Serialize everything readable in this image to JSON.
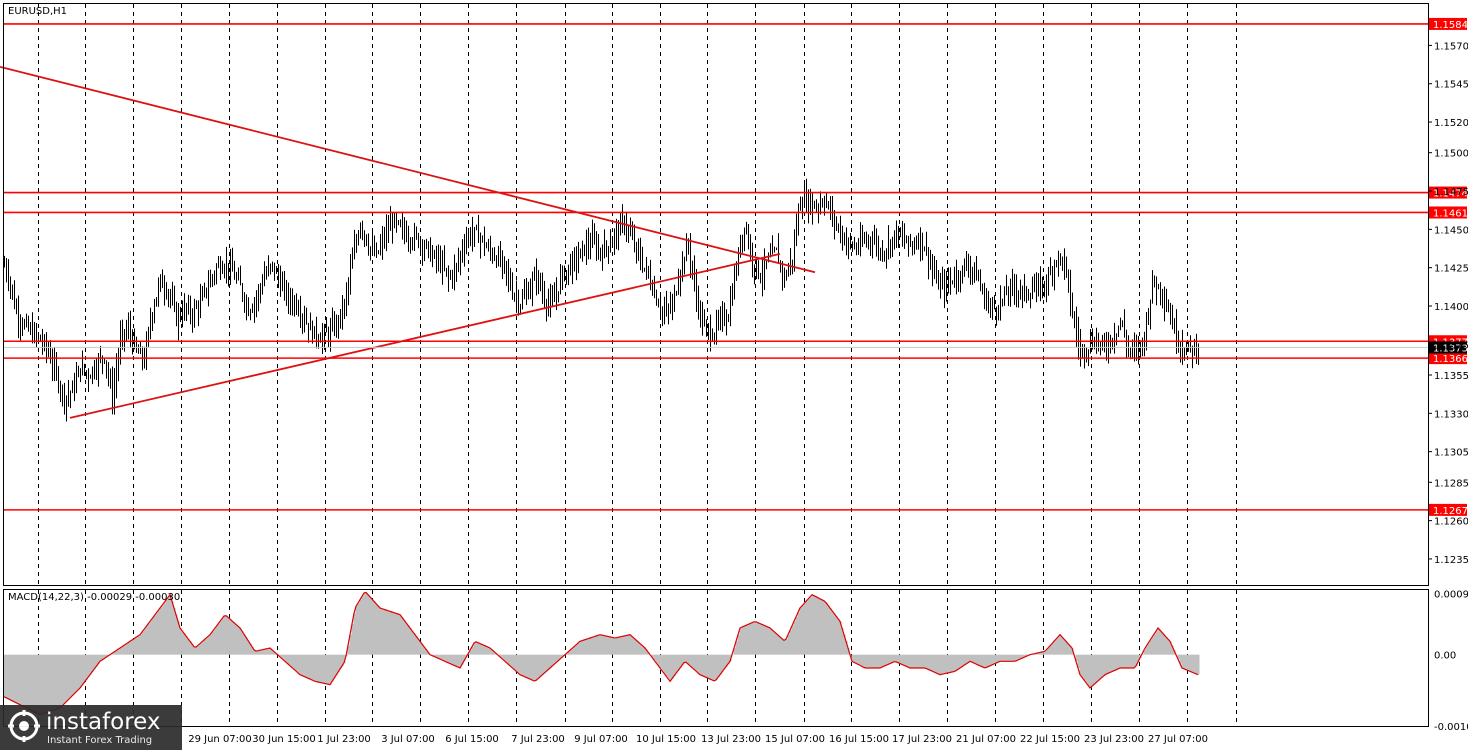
{
  "chart_data": [
    {
      "type": "candlestick",
      "title": "EURUSD,H1",
      "ylim": [
        1.1218,
        1.1597
      ],
      "y_ticks": [
        "1.1570",
        "1.1545",
        "1.1520",
        "1.1500",
        "1.1475",
        "1.1450",
        "1.1425",
        "1.1400",
        "1.1375",
        "1.1355",
        "1.1330",
        "1.1305",
        "1.1285",
        "1.1260",
        "1.1235"
      ],
      "x_ticks": [
        "29 Jun 07:00",
        "30 Jun 15:00",
        "1 Jul 23:00",
        "3 Jul 07:00",
        "6 Jul 15:00",
        "7 Jul 23:00",
        "9 Jul 07:00",
        "10 Jul 15:00",
        "13 Jul 23:00",
        "15 Jul 07:00",
        "16 Jul 15:00",
        "17 Jul 23:00",
        "21 Jul 07:00",
        "22 Jul 15:00",
        "23 Jul 23:00",
        "27 Jul 07:00"
      ],
      "levels": [
        {
          "label": "1.1584",
          "value": 1.1584
        },
        {
          "label": "1.1474",
          "value": 1.1474
        },
        {
          "label": "1.1461",
          "value": 1.1461
        },
        {
          "label": "1.1377",
          "value": 1.1377
        },
        {
          "label": "1.1366",
          "value": 1.1366
        },
        {
          "label": "1.1267",
          "value": 1.1267
        }
      ],
      "current_price": {
        "label": "1.1373",
        "value": 1.1373
      },
      "trendlines": [
        {
          "from": [
            0,
            1.1556
          ],
          "to": [
            815,
            1.1422
          ]
        },
        {
          "from": [
            70,
            1.1327
          ],
          "to": [
            780,
            1.1434
          ]
        }
      ],
      "close_path": [
        [
          0,
          1.1433
        ],
        [
          8,
          1.142
        ],
        [
          16,
          1.1396
        ],
        [
          24,
          1.1387
        ],
        [
          32,
          1.1382
        ],
        [
          40,
          1.1378
        ],
        [
          48,
          1.137
        ],
        [
          56,
          1.1355
        ],
        [
          64,
          1.134
        ],
        [
          72,
          1.1345
        ],
        [
          80,
          1.136
        ],
        [
          88,
          1.1355
        ],
        [
          96,
          1.1362
        ],
        [
          104,
          1.1368
        ],
        [
          112,
          1.134
        ],
        [
          120,
          1.1378
        ],
        [
          128,
          1.1385
        ],
        [
          136,
          1.137
        ],
        [
          144,
          1.1365
        ],
        [
          152,
          1.1398
        ],
        [
          160,
          1.1416
        ],
        [
          168,
          1.141
        ],
        [
          176,
          1.1392
        ],
        [
          184,
          1.1398
        ],
        [
          192,
          1.1395
        ],
        [
          200,
          1.1402
        ],
        [
          208,
          1.1414
        ],
        [
          216,
          1.1425
        ],
        [
          224,
          1.1428
        ],
        [
          232,
          1.1422
        ],
        [
          240,
          1.1412
        ],
        [
          248,
          1.1398
        ],
        [
          256,
          1.1405
        ],
        [
          264,
          1.142
        ],
        [
          272,
          1.1426
        ],
        [
          280,
          1.1415
        ],
        [
          288,
          1.1404
        ],
        [
          296,
          1.1402
        ],
        [
          304,
          1.1392
        ],
        [
          312,
          1.1383
        ],
        [
          320,
          1.138
        ],
        [
          328,
          1.1382
        ],
        [
          336,
          1.1388
        ],
        [
          344,
          1.14
        ],
        [
          352,
          1.143
        ],
        [
          360,
          1.1455
        ],
        [
          368,
          1.144
        ],
        [
          376,
          1.1432
        ],
        [
          384,
          1.1445
        ],
        [
          392,
          1.1455
        ],
        [
          400,
          1.145
        ],
        [
          408,
          1.1446
        ],
        [
          416,
          1.1444
        ],
        [
          424,
          1.144
        ],
        [
          432,
          1.1432
        ],
        [
          440,
          1.1428
        ],
        [
          448,
          1.1418
        ],
        [
          456,
          1.1425
        ],
        [
          464,
          1.1442
        ],
        [
          472,
          1.1448
        ],
        [
          480,
          1.1445
        ],
        [
          488,
          1.1436
        ],
        [
          496,
          1.1432
        ],
        [
          504,
          1.1425
        ],
        [
          512,
          1.141
        ],
        [
          520,
          1.1402
        ],
        [
          528,
          1.141
        ],
        [
          536,
          1.142
        ],
        [
          544,
          1.1405
        ],
        [
          552,
          1.14
        ],
        [
          560,
          1.1418
        ],
        [
          568,
          1.1425
        ],
        [
          576,
          1.143
        ],
        [
          584,
          1.1438
        ],
        [
          592,
          1.1442
        ],
        [
          600,
          1.1435
        ],
        [
          608,
          1.144
        ],
        [
          616,
          1.1448
        ],
        [
          624,
          1.1455
        ],
        [
          632,
          1.1442
        ],
        [
          640,
          1.143
        ],
        [
          648,
          1.142
        ],
        [
          656,
          1.1405
        ],
        [
          664,
          1.1395
        ],
        [
          672,
          1.14
        ],
        [
          680,
          1.1425
        ],
        [
          688,
          1.144
        ],
        [
          696,
          1.1405
        ],
        [
          704,
          1.1385
        ],
        [
          712,
          1.1382
        ],
        [
          720,
          1.139
        ],
        [
          728,
          1.1395
        ],
        [
          736,
          1.1425
        ],
        [
          744,
          1.1455
        ],
        [
          752,
          1.143
        ],
        [
          760,
          1.142
        ],
        [
          768,
          1.143
        ],
        [
          776,
          1.1435
        ],
        [
          784,
          1.1418
        ],
        [
          792,
          1.1432
        ],
        [
          800,
          1.147
        ],
        [
          808,
          1.1468
        ],
        [
          816,
          1.1465
        ],
        [
          824,
          1.147
        ],
        [
          832,
          1.1458
        ],
        [
          840,
          1.1448
        ],
        [
          848,
          1.144
        ],
        [
          856,
          1.1438
        ],
        [
          864,
          1.1442
        ],
        [
          872,
          1.1445
        ],
        [
          880,
          1.1435
        ],
        [
          888,
          1.144
        ],
        [
          896,
          1.1448
        ],
        [
          904,
          1.1442
        ],
        [
          912,
          1.144
        ],
        [
          920,
          1.1445
        ],
        [
          928,
          1.1432
        ],
        [
          936,
          1.1415
        ],
        [
          944,
          1.1412
        ],
        [
          952,
          1.1418
        ],
        [
          960,
          1.1422
        ],
        [
          968,
          1.1428
        ],
        [
          976,
          1.142
        ],
        [
          984,
          1.1405
        ],
        [
          992,
          1.1398
        ],
        [
          1000,
          1.1402
        ],
        [
          1008,
          1.141
        ],
        [
          1016,
          1.1412
        ],
        [
          1024,
          1.1408
        ],
        [
          1032,
          1.141
        ],
        [
          1040,
          1.1412
        ],
        [
          1048,
          1.1418
        ],
        [
          1056,
          1.1432
        ],
        [
          1064,
          1.1428
        ],
        [
          1072,
          1.1395
        ],
        [
          1080,
          1.137
        ],
        [
          1088,
          1.1375
        ],
        [
          1096,
          1.1378
        ],
        [
          1104,
          1.1372
        ],
        [
          1112,
          1.138
        ],
        [
          1120,
          1.139
        ],
        [
          1128,
          1.1372
        ],
        [
          1136,
          1.137
        ],
        [
          1144,
          1.138
        ],
        [
          1152,
          1.1415
        ],
        [
          1160,
          1.1412
        ],
        [
          1168,
          1.1398
        ],
        [
          1176,
          1.138
        ],
        [
          1184,
          1.1372
        ],
        [
          1192,
          1.1372
        ],
        [
          1198,
          1.1374
        ]
      ]
    },
    {
      "type": "area",
      "title": "MACD(14,22,3) -0.00029 -0.00030",
      "ylim": [
        -0.00107,
        0.00097
      ],
      "y_ticks": [
        "0.00092",
        "0.00",
        "-0.00107"
      ],
      "histogram_path": [
        [
          0,
          -0.0006
        ],
        [
          20,
          -0.00075
        ],
        [
          40,
          -0.0009
        ],
        [
          60,
          -0.0008
        ],
        [
          80,
          -0.0005
        ],
        [
          100,
          -0.0001
        ],
        [
          120,
          0.0001
        ],
        [
          140,
          0.0003
        ],
        [
          160,
          0.0007
        ],
        [
          170,
          0.0009
        ],
        [
          180,
          0.0004
        ],
        [
          195,
          0.0001
        ],
        [
          210,
          0.0003
        ],
        [
          225,
          0.0006
        ],
        [
          240,
          0.0004
        ],
        [
          255,
          5e-05
        ],
        [
          270,
          0.0001
        ],
        [
          285,
          -0.0001
        ],
        [
          300,
          -0.0003
        ],
        [
          315,
          -0.0004
        ],
        [
          330,
          -0.00045
        ],
        [
          345,
          -0.0001
        ],
        [
          355,
          0.0007
        ],
        [
          365,
          0.00095
        ],
        [
          380,
          0.0007
        ],
        [
          400,
          0.0006
        ],
        [
          415,
          0.0003
        ],
        [
          430,
          0.0
        ],
        [
          445,
          -0.0001
        ],
        [
          460,
          -0.0002
        ],
        [
          475,
          0.0002
        ],
        [
          490,
          0.0001
        ],
        [
          505,
          -0.0001
        ],
        [
          520,
          -0.0003
        ],
        [
          535,
          -0.0004
        ],
        [
          550,
          -0.0002
        ],
        [
          565,
          0.0
        ],
        [
          580,
          0.0002
        ],
        [
          600,
          0.0003
        ],
        [
          615,
          0.00025
        ],
        [
          630,
          0.0003
        ],
        [
          645,
          0.0001
        ],
        [
          660,
          -0.0002
        ],
        [
          670,
          -0.0004
        ],
        [
          685,
          -0.0001
        ],
        [
          700,
          -0.0003
        ],
        [
          715,
          -0.0004
        ],
        [
          730,
          -0.0001
        ],
        [
          740,
          0.0004
        ],
        [
          755,
          0.0005
        ],
        [
          770,
          0.0004
        ],
        [
          785,
          0.0002
        ],
        [
          800,
          0.0007
        ],
        [
          812,
          0.0009
        ],
        [
          825,
          0.0008
        ],
        [
          840,
          0.0005
        ],
        [
          852,
          -0.0001
        ],
        [
          865,
          -0.0002
        ],
        [
          880,
          -0.0002
        ],
        [
          895,
          -0.0001
        ],
        [
          910,
          -0.0002
        ],
        [
          925,
          -0.0002
        ],
        [
          940,
          -0.0003
        ],
        [
          955,
          -0.00025
        ],
        [
          970,
          -0.0001
        ],
        [
          985,
          -0.0002
        ],
        [
          1000,
          -0.0001
        ],
        [
          1015,
          -0.0001
        ],
        [
          1030,
          0.0
        ],
        [
          1045,
          5e-05
        ],
        [
          1060,
          0.0003
        ],
        [
          1072,
          0.0001
        ],
        [
          1080,
          -0.0003
        ],
        [
          1090,
          -0.0005
        ],
        [
          1105,
          -0.0003
        ],
        [
          1120,
          -0.0002
        ],
        [
          1135,
          -0.0002
        ],
        [
          1145,
          0.0001
        ],
        [
          1158,
          0.0004
        ],
        [
          1170,
          0.0002
        ],
        [
          1182,
          -0.0002
        ],
        [
          1198,
          -0.0003
        ]
      ]
    }
  ],
  "watermark": {
    "brand": "instaforex",
    "tagline": "Instant Forex Trading"
  }
}
